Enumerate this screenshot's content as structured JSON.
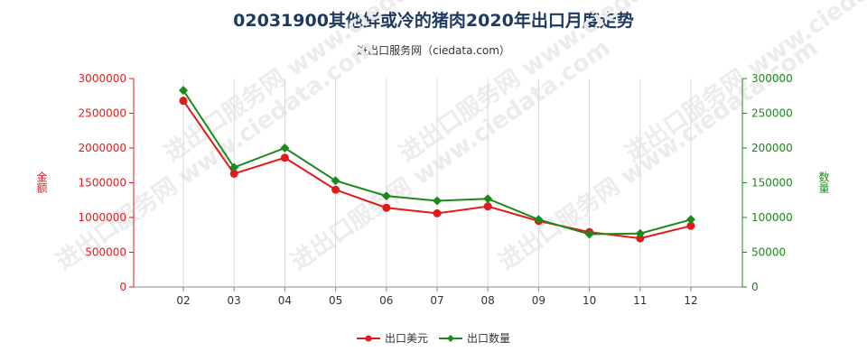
{
  "chart_data": {
    "type": "line",
    "title": "02031900其他鲜或冷的猪肉2020年出口月度走势",
    "subtitle": "进出口服务网（ciedata.com）",
    "categories": [
      "02",
      "03",
      "04",
      "05",
      "06",
      "07",
      "08",
      "09",
      "10",
      "11",
      "12"
    ],
    "ylabel_left": "金额",
    "ylabel_right": "数量",
    "ylim_left": [
      0,
      3000000
    ],
    "ylim_right": [
      0,
      300000
    ],
    "yticks_left": [
      0,
      500000,
      1000000,
      1500000,
      2000000,
      2500000,
      3000000
    ],
    "yticks_right": [
      0,
      50000,
      100000,
      150000,
      200000,
      250000,
      300000
    ],
    "series": [
      {
        "name": "出口美元",
        "axis": "left",
        "color": "#e31a1c",
        "values": [
          2680000,
          1630000,
          1860000,
          1400000,
          1140000,
          1060000,
          1160000,
          950000,
          790000,
          700000,
          880000
        ]
      },
      {
        "name": "出口数量",
        "axis": "right",
        "color": "#1a8a1a",
        "values": [
          283000,
          172000,
          200000,
          153000,
          131000,
          124000,
          127000,
          97000,
          76000,
          77000,
          97000
        ]
      }
    ],
    "legend_position": "bottom-center",
    "grid": "vertical",
    "watermark": "进出口服务网 www.ciedata.com"
  }
}
